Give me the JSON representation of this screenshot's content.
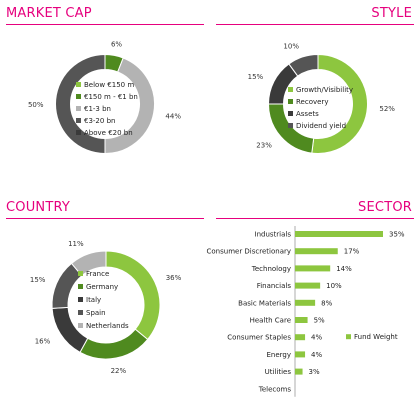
{
  "panels": {
    "market_cap": {
      "title": "MARKET CAP"
    },
    "style": {
      "title": "STYLE"
    },
    "country": {
      "title": "COUNTRY"
    },
    "sector": {
      "title": "SECTOR"
    }
  },
  "colors": {
    "accent": "#e6007e",
    "light_green": "#8dc63f",
    "dark_green": "#4f8a1f",
    "gray": "#b3b3b3",
    "dark_gray": "#555555",
    "charcoal": "#3a3a3a"
  },
  "chart_data": [
    {
      "id": "market_cap",
      "type": "pie",
      "donut": true,
      "title": "MARKET CAP",
      "slices": [
        {
          "label": "Below €150 m",
          "value": 0,
          "display": "",
          "color": "#8dc63f"
        },
        {
          "label": "€150 m - €1 bn",
          "value": 6,
          "display": "6%",
          "color": "#4f8a1f"
        },
        {
          "label": "€1-3 bn",
          "value": 44,
          "display": "44%",
          "color": "#b3b3b3"
        },
        {
          "label": "€3-20 bn",
          "value": 50,
          "display": "50%",
          "color": "#555555"
        },
        {
          "label": "Above €20 bn",
          "value": 0,
          "display": "",
          "color": "#3a3a3a"
        }
      ]
    },
    {
      "id": "style",
      "type": "pie",
      "donut": true,
      "title": "STYLE",
      "slices": [
        {
          "label": "Growth/Visibility",
          "value": 52,
          "display": "52%",
          "color": "#8dc63f"
        },
        {
          "label": "Recovery",
          "value": 23,
          "display": "23%",
          "color": "#4f8a1f"
        },
        {
          "label": "Assets",
          "value": 15,
          "display": "15%",
          "color": "#3a3a3a"
        },
        {
          "label": "Dividend yield",
          "value": 10,
          "display": "10%",
          "color": "#555555"
        }
      ]
    },
    {
      "id": "country",
      "type": "pie",
      "donut": true,
      "title": "COUNTRY",
      "slices": [
        {
          "label": "France",
          "value": 36,
          "display": "36%",
          "color": "#8dc63f"
        },
        {
          "label": "Germany",
          "value": 22,
          "display": "22%",
          "color": "#4f8a1f"
        },
        {
          "label": "Italy",
          "value": 16,
          "display": "16%",
          "color": "#3a3a3a"
        },
        {
          "label": "Spain",
          "value": 15,
          "display": "15%",
          "color": "#555555"
        },
        {
          "label": "Netherlands",
          "value": 11,
          "display": "11%",
          "color": "#b3b3b3"
        }
      ]
    },
    {
      "id": "sector",
      "type": "bar",
      "orientation": "horizontal",
      "title": "SECTOR",
      "categories": [
        "Industrials",
        "Consumer Discretionary",
        "Technology",
        "Financials",
        "Basic Materials",
        "Health Care",
        "Consumer Staples",
        "Energy",
        "Utilities",
        "Telecoms"
      ],
      "values": [
        35,
        17,
        14,
        10,
        8,
        5,
        4,
        4,
        3,
        0
      ],
      "labels": [
        "35%",
        "17%",
        "14%",
        "10%",
        "8%",
        "5%",
        "4%",
        "4%",
        "3%",
        ""
      ],
      "legend": {
        "label": "Fund Weight",
        "placement": "bottom-right"
      },
      "color": "#8dc63f",
      "xlim": [
        0,
        35
      ]
    }
  ]
}
